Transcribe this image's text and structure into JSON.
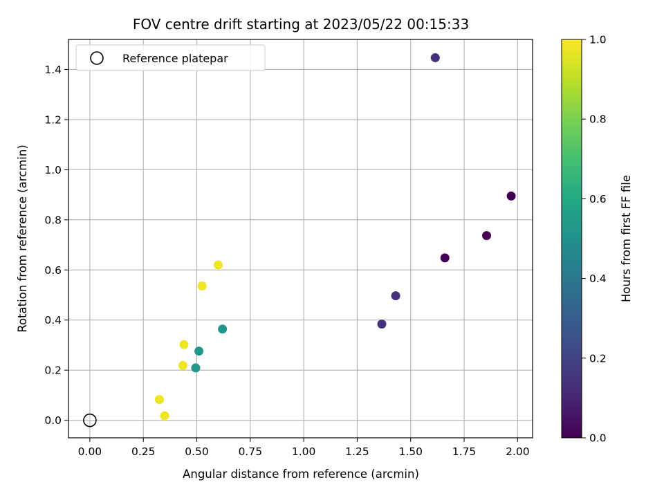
{
  "chart_data": {
    "type": "scatter",
    "title": "FOV centre drift starting at 2023/05/22 00:15:33",
    "xlabel": "Angular distance from reference (arcmin)",
    "ylabel": "Rotation from reference (arcmin)",
    "xlim": [
      -0.1,
      2.07
    ],
    "ylim": [
      -0.07,
      1.52
    ],
    "xticks": [
      "0.00",
      "0.25",
      "0.50",
      "0.75",
      "1.00",
      "1.25",
      "1.50",
      "1.75",
      "2.00"
    ],
    "yticks": [
      "0.0",
      "0.2",
      "0.4",
      "0.6",
      "0.8",
      "1.0",
      "1.2",
      "1.4"
    ],
    "grid": true,
    "legend": {
      "position": "top-left",
      "entries": [
        "Reference platepar"
      ]
    },
    "reference_point": {
      "x": 0.0,
      "y": 0.0,
      "marker": "open-circle"
    },
    "colorbar": {
      "label": "Hours from first FF file",
      "colormap": "viridis",
      "range": [
        0.0,
        1.0
      ],
      "ticks": [
        "0.0",
        "0.2",
        "0.4",
        "0.6",
        "0.8",
        "1.0"
      ]
    },
    "points": [
      {
        "x": 1.97,
        "y": 0.895,
        "hours": 0.0
      },
      {
        "x": 1.855,
        "y": 0.737,
        "hours": 0.0
      },
      {
        "x": 1.66,
        "y": 0.648,
        "hours": 0.0
      },
      {
        "x": 1.615,
        "y": 1.447,
        "hours": 0.14
      },
      {
        "x": 1.43,
        "y": 0.497,
        "hours": 0.14
      },
      {
        "x": 1.365,
        "y": 0.384,
        "hours": 0.14
      },
      {
        "x": 0.62,
        "y": 0.364,
        "hours": 0.52
      },
      {
        "x": 0.51,
        "y": 0.276,
        "hours": 0.52
      },
      {
        "x": 0.495,
        "y": 0.209,
        "hours": 0.52
      },
      {
        "x": 0.6,
        "y": 0.62,
        "hours": 0.98
      },
      {
        "x": 0.525,
        "y": 0.536,
        "hours": 0.98
      },
      {
        "x": 0.44,
        "y": 0.302,
        "hours": 0.98
      },
      {
        "x": 0.435,
        "y": 0.219,
        "hours": 0.98
      },
      {
        "x": 0.325,
        "y": 0.083,
        "hours": 0.98
      },
      {
        "x": 0.35,
        "y": 0.018,
        "hours": 0.98
      }
    ]
  }
}
